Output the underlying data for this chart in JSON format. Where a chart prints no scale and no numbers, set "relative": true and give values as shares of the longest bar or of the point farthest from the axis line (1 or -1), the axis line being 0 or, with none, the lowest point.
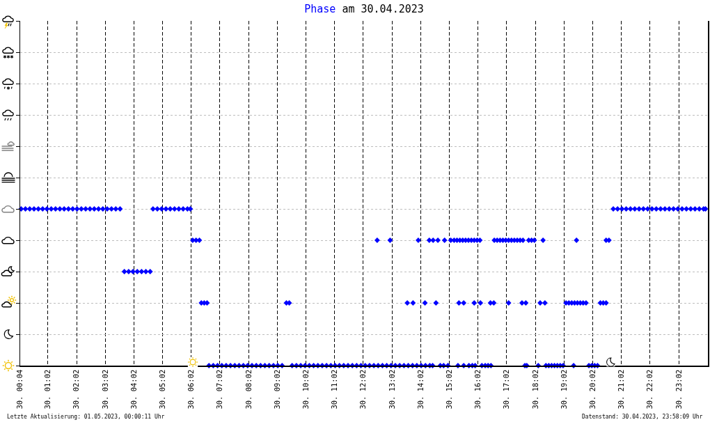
{
  "chart_data": {
    "type": "scatter",
    "title": "Phase am 30.04.2023",
    "color": "#0000ff",
    "marker": "diamond",
    "grid": true,
    "relative": true,
    "xlim": [
      "2023-04-30T00:04",
      "2023-05-01T00:03"
    ],
    "xticks": [
      {
        "value": "2023-04-30T00:04",
        "label": "30. 00:04"
      },
      {
        "value": "2023-04-30T01:02",
        "label": "30. 01:02"
      },
      {
        "value": "2023-04-30T02:02",
        "label": "30. 02:02"
      },
      {
        "value": "2023-04-30T03:02",
        "label": "30. 03:02"
      },
      {
        "value": "2023-04-30T04:02",
        "label": "30. 04:02"
      },
      {
        "value": "2023-04-30T05:02",
        "label": "30. 05:02"
      },
      {
        "value": "2023-04-30T06:02",
        "label": "30. 06:02"
      },
      {
        "value": "2023-04-30T07:02",
        "label": "30. 07:02"
      },
      {
        "value": "2023-04-30T08:02",
        "label": "30. 08:02"
      },
      {
        "value": "2023-04-30T09:02",
        "label": "30. 09:02"
      },
      {
        "value": "2023-04-30T10:02",
        "label": "30. 10:02"
      },
      {
        "value": "2023-04-30T11:02",
        "label": "30. 11:02"
      },
      {
        "value": "2023-04-30T12:02",
        "label": "30. 12:02"
      },
      {
        "value": "2023-04-30T13:02",
        "label": "30. 13:02"
      },
      {
        "value": "2023-04-30T14:02",
        "label": "30. 14:02"
      },
      {
        "value": "2023-04-30T15:02",
        "label": "30. 15:02"
      },
      {
        "value": "2023-04-30T16:02",
        "label": "30. 16:02"
      },
      {
        "value": "2023-04-30T17:02",
        "label": "30. 17:02"
      },
      {
        "value": "2023-04-30T18:02",
        "label": "30. 18:02"
      },
      {
        "value": "2023-04-30T19:02",
        "label": "30. 19:02"
      },
      {
        "value": "2023-04-30T20:02",
        "label": "30. 20:02"
      },
      {
        "value": "2023-04-30T21:02",
        "label": "30. 21:02"
      },
      {
        "value": "2023-04-30T22:02",
        "label": "30. 22:02"
      },
      {
        "value": "2023-04-30T23:02",
        "label": "30. 23:02"
      }
    ],
    "x": [
      "2023-04-30T00:06",
      "2023-04-30T00:15",
      "2023-04-30T00:24",
      "2023-04-30T00:33",
      "2023-04-30T00:42",
      "2023-04-30T00:51",
      "2023-04-30T01:00",
      "2023-04-30T01:09",
      "2023-04-30T01:18",
      "2023-04-30T01:27",
      "2023-04-30T01:36",
      "2023-04-30T01:45",
      "2023-04-30T01:54",
      "2023-04-30T02:03",
      "2023-04-30T02:12",
      "2023-04-30T02:21",
      "2023-04-30T02:30",
      "2023-04-30T02:39",
      "2023-04-30T02:48",
      "2023-04-30T02:57",
      "2023-04-30T03:06",
      "2023-04-30T03:15",
      "2023-04-30T03:24",
      "2023-04-30T03:33",
      "2023-04-30T03:42",
      "2023-04-30T03:51",
      "2023-04-30T04:00",
      "2023-04-30T04:09",
      "2023-04-30T04:18",
      "2023-04-30T04:27",
      "2023-04-30T04:36",
      "2023-04-30T04:42",
      "2023-04-30T04:51",
      "2023-04-30T05:00",
      "2023-04-30T05:09",
      "2023-04-30T05:18",
      "2023-04-30T05:27",
      "2023-04-30T05:36",
      "2023-04-30T05:45",
      "2023-04-30T05:54",
      "2023-04-30T06:00",
      "2023-04-30T06:05",
      "2023-04-30T06:12",
      "2023-04-30T06:19",
      "2023-04-30T06:23",
      "2023-04-30T06:29",
      "2023-04-30T06:35",
      "2023-04-30T06:39",
      "2023-04-30T06:48",
      "2023-04-30T06:57",
      "2023-04-30T07:06",
      "2023-04-30T07:15",
      "2023-04-30T07:24",
      "2023-04-30T07:33",
      "2023-04-30T07:42",
      "2023-04-30T07:51",
      "2023-04-30T08:00",
      "2023-04-30T08:09",
      "2023-04-30T08:18",
      "2023-04-30T08:27",
      "2023-04-30T08:36",
      "2023-04-30T08:45",
      "2023-04-30T08:54",
      "2023-04-30T09:03",
      "2023-04-30T09:12",
      "2023-04-30T09:21",
      "2023-04-30T09:27",
      "2023-04-30T09:33",
      "2023-04-30T09:42",
      "2023-04-30T09:51",
      "2023-04-30T10:00",
      "2023-04-30T10:09",
      "2023-04-30T10:18",
      "2023-04-30T10:27",
      "2023-04-30T10:36",
      "2023-04-30T10:45",
      "2023-04-30T10:54",
      "2023-04-30T11:03",
      "2023-04-30T11:12",
      "2023-04-30T11:21",
      "2023-04-30T11:30",
      "2023-04-30T11:39",
      "2023-04-30T11:48",
      "2023-04-30T11:57",
      "2023-04-30T12:06",
      "2023-04-30T12:15",
      "2023-04-30T12:24",
      "2023-04-30T12:33",
      "2023-04-30T12:42",
      "2023-04-30T12:51",
      "2023-04-30T13:00",
      "2023-04-30T13:09",
      "2023-04-30T13:18",
      "2023-04-30T13:27",
      "2023-04-30T13:36",
      "2023-04-30T13:45",
      "2023-04-30T13:54",
      "2023-04-30T14:03",
      "2023-04-30T14:12",
      "2023-04-30T14:21",
      "2023-04-30T14:27",
      "2023-04-30T12:31",
      "2023-04-30T12:58",
      "2023-04-30T13:57",
      "2023-04-30T14:20",
      "2023-04-30T14:28",
      "2023-04-30T14:38",
      "2023-04-30T14:52",
      "2023-04-30T13:34",
      "2023-04-30T13:46",
      "2023-04-30T14:11",
      "2023-04-30T14:34",
      "2023-04-30T14:43",
      "2023-04-30T14:50",
      "2023-04-30T14:59",
      "2023-04-30T15:05",
      "2023-04-30T15:12",
      "2023-04-30T15:18",
      "2023-04-30T15:24",
      "2023-04-30T15:30",
      "2023-04-30T15:36",
      "2023-04-30T15:42",
      "2023-04-30T15:48",
      "2023-04-30T15:54",
      "2023-04-30T16:00",
      "2023-04-30T16:06",
      "2023-04-30T15:22",
      "2023-04-30T15:32",
      "2023-04-30T15:54",
      "2023-04-30T16:07",
      "2023-04-30T16:28",
      "2023-04-30T16:35",
      "2023-04-30T15:20",
      "2023-04-30T15:32",
      "2023-04-30T15:43",
      "2023-04-30T15:50",
      "2023-04-30T15:56",
      "2023-04-30T16:10",
      "2023-04-30T16:17",
      "2023-04-30T16:23",
      "2023-04-30T16:29",
      "2023-04-30T16:36",
      "2023-04-30T16:42",
      "2023-04-30T16:48",
      "2023-04-30T16:54",
      "2023-04-30T17:00",
      "2023-04-30T17:06",
      "2023-04-30T17:12",
      "2023-04-30T17:18",
      "2023-04-30T17:24",
      "2023-04-30T17:30",
      "2023-04-30T17:36",
      "2023-04-30T17:06",
      "2023-04-30T17:34",
      "2023-04-30T17:42",
      "2023-04-30T17:40",
      "2023-04-30T17:44",
      "2023-04-30T17:48",
      "2023-04-30T17:54",
      "2023-04-30T18:00",
      "2023-04-30T18:08",
      "2023-04-30T18:12",
      "2023-04-30T18:22",
      "2023-04-30T18:18",
      "2023-04-30T18:24",
      "2023-04-30T18:30",
      "2023-04-30T18:36",
      "2023-04-30T18:42",
      "2023-04-30T18:48",
      "2023-04-30T18:54",
      "2023-04-30T19:00",
      "2023-04-30T19:06",
      "2023-04-30T19:12",
      "2023-04-30T19:18",
      "2023-04-30T19:24",
      "2023-04-30T19:30",
      "2023-04-30T19:36",
      "2023-04-30T19:42",
      "2023-04-30T19:48",
      "2023-04-30T19:22",
      "2023-04-30T19:28",
      "2023-04-30T19:54",
      "2023-04-30T20:00",
      "2023-04-30T20:06",
      "2023-04-30T20:12",
      "2023-04-30T20:18",
      "2023-04-30T20:24",
      "2023-04-30T20:30",
      "2023-04-30T20:30",
      "2023-04-30T20:36",
      "2023-04-30T20:45",
      "2023-04-30T20:54",
      "2023-04-30T21:03",
      "2023-04-30T21:12",
      "2023-04-30T21:21",
      "2023-04-30T21:30",
      "2023-04-30T21:39",
      "2023-04-30T21:48",
      "2023-04-30T21:57",
      "2023-04-30T22:06",
      "2023-04-30T22:15",
      "2023-04-30T22:24",
      "2023-04-30T22:33",
      "2023-04-30T22:42",
      "2023-04-30T22:51",
      "2023-04-30T23:00",
      "2023-04-30T23:09",
      "2023-04-30T23:18",
      "2023-04-30T23:27",
      "2023-04-30T23:36",
      "2023-04-30T23:45",
      "2023-04-30T23:54",
      "2023-04-30T23:58"
    ],
    "values": [
      1,
      1,
      1,
      1,
      1,
      1,
      1,
      1,
      1,
      1,
      1,
      1,
      1,
      1,
      1,
      1,
      1,
      1,
      1,
      1,
      1,
      1,
      1,
      1,
      0.6,
      0.6,
      0.6,
      0.6,
      0.6,
      0.6,
      0.6,
      1,
      1,
      1,
      1,
      1,
      1,
      1,
      1,
      1,
      1,
      0.8,
      0.8,
      0.8,
      0.4,
      0.4,
      0.4,
      0,
      0,
      0,
      0,
      0,
      0,
      0,
      0,
      0,
      0,
      0,
      0,
      0,
      0,
      0,
      0,
      0,
      0,
      0.4,
      0.4,
      0,
      0,
      0,
      0,
      0,
      0,
      0,
      0,
      0,
      0,
      0,
      0,
      0,
      0,
      0,
      0,
      0,
      0,
      0,
      0,
      0,
      0,
      0,
      0,
      0,
      0,
      0,
      0,
      0,
      0,
      0,
      0,
      0,
      0,
      0.8,
      0.8,
      0.8,
      0.8,
      0.8,
      0.8,
      0.8,
      0.4,
      0.4,
      0.4,
      0.4,
      0,
      0,
      0,
      0.8,
      0.8,
      0.8,
      0.8,
      0.8,
      0.8,
      0.8,
      0.8,
      0.8,
      0.8,
      0.8,
      0.4,
      0.4,
      0.4,
      0.4,
      0.4,
      0.4,
      0,
      0,
      0,
      0,
      0,
      0,
      0,
      0,
      0,
      0.8,
      0.8,
      0.8,
      0.8,
      0.8,
      0.8,
      0.8,
      0.8,
      0.8,
      0.8,
      0.8,
      0.4,
      0.4,
      0.4,
      0,
      0,
      0.8,
      0.8,
      0.8,
      0,
      0.4,
      0.4,
      0.8,
      0,
      0,
      0,
      0,
      0,
      0,
      0,
      0.4,
      0.4,
      0.4,
      0.4,
      0.4,
      0.4,
      0.4,
      0.4,
      0,
      0.8,
      0,
      0,
      0,
      0,
      0.4,
      0.4,
      0.4,
      0.8,
      0.8,
      1,
      1,
      1,
      1,
      1,
      1,
      1,
      1,
      1,
      1,
      1,
      1,
      1,
      1,
      1,
      1,
      1,
      1,
      1,
      1,
      1,
      1,
      1
    ],
    "annotations": [
      "Letzte Aktualisierung: 01.05.2023, 00:00:11 Uhr",
      "Datenstand: 30.04.2023, 23:58:09 Uhr"
    ]
  }
}
